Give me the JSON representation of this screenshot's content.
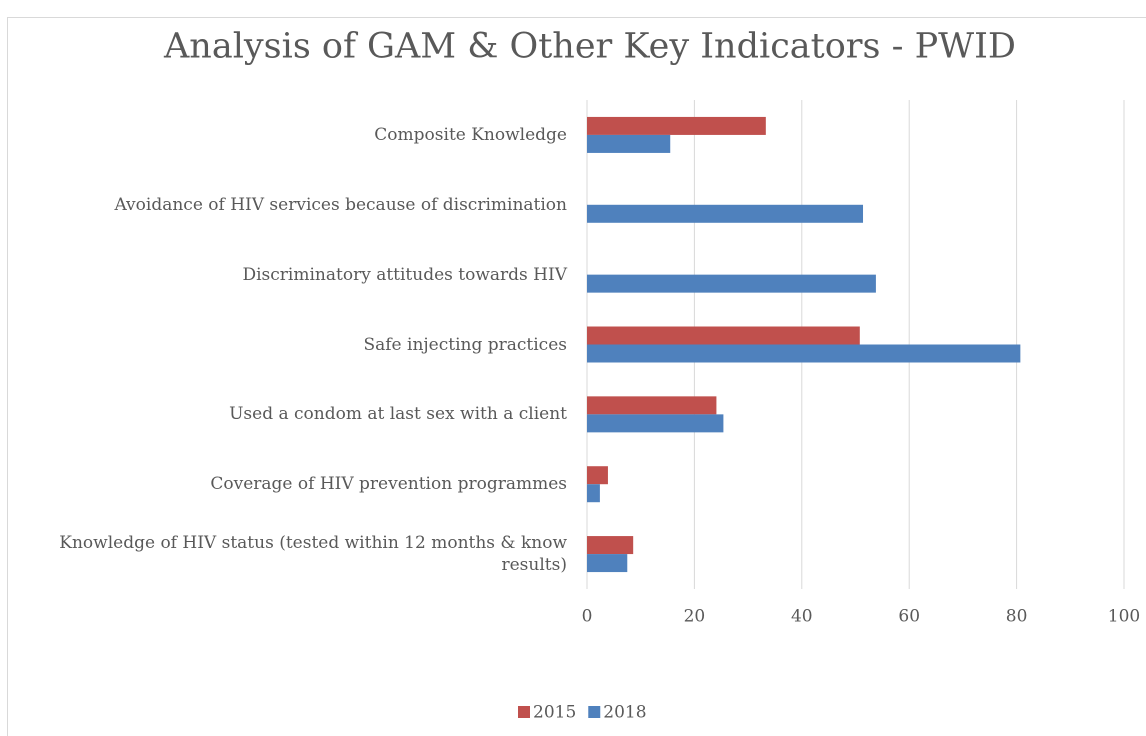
{
  "chart_data": {
    "type": "hbar",
    "title": "Analysis of GAM & Other Key Indicators - PWID",
    "categories": [
      "Composite Knowledge",
      "Avoidance of HIV services because of discrimination",
      "Discriminatory attitudes towards HIV",
      "Safe injecting practices",
      "Used a condom at last sex with a client",
      "Coverage of HIV prevention programmes",
      "Knowledge of HIV status (tested within 12 months & know results)"
    ],
    "series": [
      {
        "name": "2015",
        "color": "#c0504d",
        "values": [
          33.3,
          null,
          null,
          50.8,
          24.1,
          3.9,
          8.6
        ]
      },
      {
        "name": "2018",
        "color": "#4f81bd",
        "values": [
          15.5,
          51.4,
          53.8,
          80.7,
          25.4,
          2.4,
          7.5
        ]
      }
    ],
    "xlim": [
      0,
      100
    ],
    "xticks": [
      0,
      20,
      40,
      60,
      80,
      100
    ],
    "grid": true,
    "legend": "bottom"
  }
}
